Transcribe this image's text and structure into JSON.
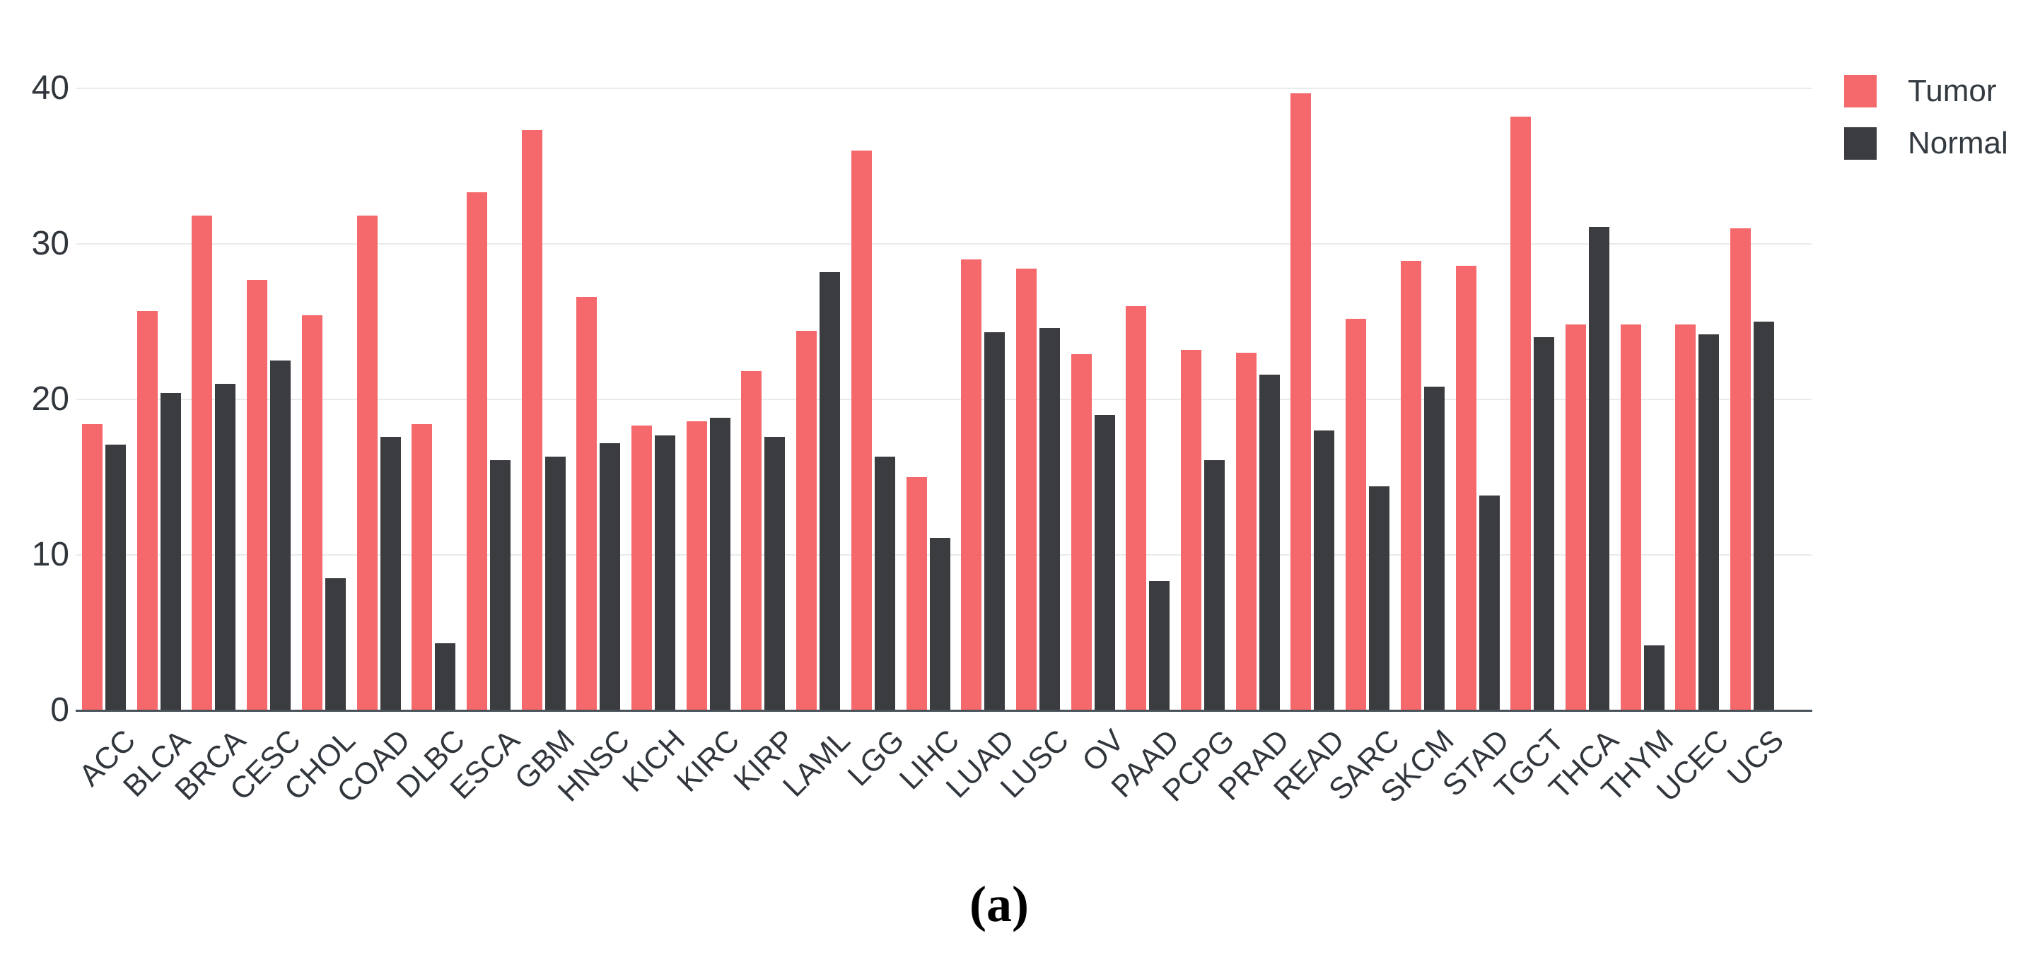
{
  "figure": {
    "caption": "(a)"
  },
  "chart_data": {
    "type": "bar",
    "subtype": "grouped",
    "title": "",
    "xlabel": "",
    "ylabel": "",
    "categories": [
      "ACC",
      "BLCA",
      "BRCA",
      "CESC",
      "CHOL",
      "COAD",
      "DLBC",
      "ESCA",
      "GBM",
      "HNSC",
      "KICH",
      "KIRC",
      "KIRP",
      "LAML",
      "LGG",
      "LIHC",
      "LUAD",
      "LUSC",
      "OV",
      "PAAD",
      "PCPG",
      "PRAD",
      "READ",
      "SARC",
      "SKCM",
      "STAD",
      "TGCT",
      "THCA",
      "THYM",
      "UCEC",
      "UCS"
    ],
    "series": [
      {
        "name": "Tumor",
        "color": "#f5696c",
        "values": [
          18.4,
          25.7,
          31.8,
          27.7,
          25.4,
          31.8,
          18.4,
          33.3,
          37.3,
          26.6,
          18.3,
          18.6,
          21.8,
          24.4,
          36.0,
          15.0,
          29.0,
          28.4,
          22.9,
          26.0,
          23.2,
          23.0,
          39.7,
          25.2,
          28.9,
          28.6,
          38.2,
          24.8,
          24.8,
          24.8,
          31.0
        ]
      },
      {
        "name": "Normal",
        "color": "#3a3c3f",
        "values": [
          17.1,
          20.4,
          21.0,
          22.5,
          8.5,
          17.6,
          4.3,
          16.1,
          16.3,
          17.2,
          17.7,
          18.8,
          17.6,
          28.2,
          16.3,
          11.1,
          24.3,
          24.6,
          19.0,
          8.3,
          16.1,
          21.6,
          18.0,
          14.4,
          20.8,
          13.8,
          24.0,
          31.1,
          4.2,
          24.2,
          25.0
        ]
      }
    ],
    "ylim": [
      0,
      42
    ],
    "yticks": [
      0,
      10,
      20,
      30,
      40
    ],
    "grid": true,
    "legend_position": "top-right",
    "gridline_color": "#e9eaeb",
    "axis_line_color": "#49525a",
    "tick_label_color": "#30363c"
  }
}
